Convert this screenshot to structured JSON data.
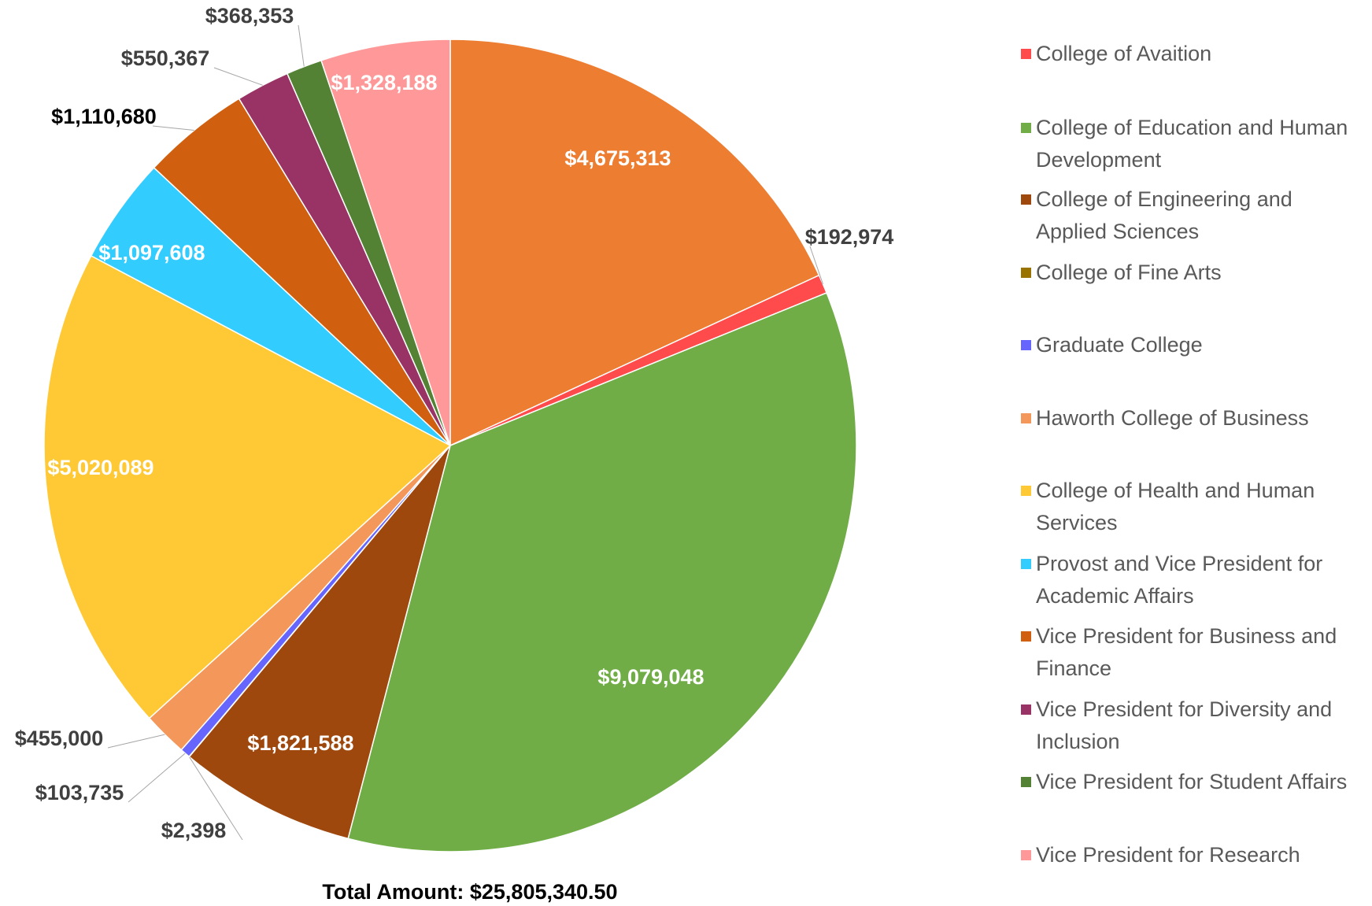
{
  "chart_data": {
    "type": "pie",
    "categories": [
      null,
      "College of Avaition",
      "College of Education and Human Development",
      "College of Engineering and Applied Sciences",
      "College of Fine Arts",
      "Graduate College",
      "Haworth College of Business",
      "College of Health and Human Services",
      "Provost and Vice President for Academic Affairs",
      "Vice President for Business and Finance",
      "Vice President for Diversity and Inclusion",
      "Vice President for Student Affairs",
      "Vice President for Research"
    ],
    "values": [
      4675313,
      192974,
      9079048,
      1821588,
      2398,
      103735,
      455000,
      5020089,
      1097608,
      1110680,
      550367,
      368353,
      1328188
    ],
    "value_labels": [
      "$4,675,313",
      "$192,974",
      "$9,079,048",
      "$1,821,588",
      "$2,398",
      "$103,735",
      "$455,000",
      "$5,020,089",
      "$1,097,608",
      "$1,110,680",
      "$550,367",
      "$368,353",
      "$1,328,188"
    ],
    "colors": [
      "#ED7D31",
      "#FF4B4B",
      "#70AD47",
      "#9E480E",
      "#997300",
      "#6666FF",
      "#F4975A",
      "#FFC936",
      "#33CCFF",
      "#D0600F",
      "#993366",
      "#548235",
      "#FF9999"
    ],
    "footer": "Total Amount: $25,805,340.50",
    "legend": "right"
  }
}
